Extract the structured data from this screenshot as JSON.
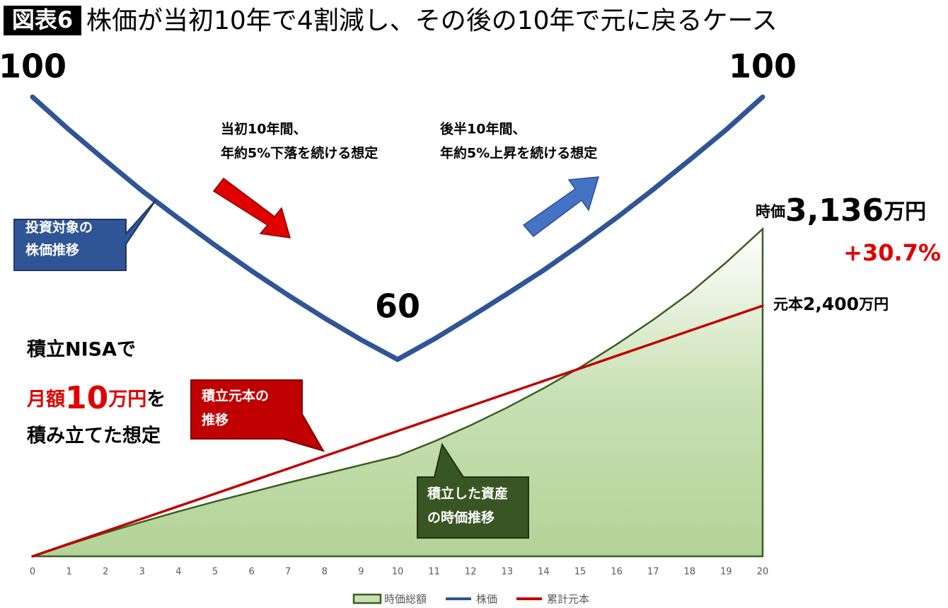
{
  "chart_data": {
    "type": "line",
    "title_tag": "図表6",
    "title": "株価が当初10年で4割減し、その後の10年で元に戻るケース",
    "x": [
      0,
      1,
      2,
      3,
      4,
      5,
      6,
      7,
      8,
      9,
      10,
      11,
      12,
      13,
      14,
      15,
      16,
      17,
      18,
      19,
      20
    ],
    "xlim": [
      0,
      20
    ],
    "xticks": [
      0,
      1,
      2,
      3,
      4,
      5,
      6,
      7,
      8,
      9,
      10,
      11,
      12,
      13,
      14,
      15,
      16,
      17,
      18,
      19,
      20
    ],
    "ylim": [
      0,
      4400
    ],
    "y2lim": [
      30,
      100
    ],
    "series": [
      {
        "name": "時価総額",
        "color": "#3a5f1e",
        "area": true,
        "values": [
          0,
          115,
          225,
          330,
          430,
          525,
          615,
          705,
          790,
          875,
          960,
          1100,
          1255,
          1425,
          1610,
          1810,
          2030,
          2265,
          2520,
          2815,
          3136
        ],
        "value_labels": [
          null,
          null,
          null,
          null,
          null,
          null,
          null,
          null,
          null,
          null,
          null,
          null,
          null,
          null,
          null,
          null,
          null,
          null,
          null,
          null,
          "3,136"
        ]
      },
      {
        "name": "株価",
        "color": "#2f5597",
        "axis": "y2",
        "values": [
          100,
          95,
          90.3,
          85.7,
          81.5,
          77.4,
          73.5,
          69.8,
          66.3,
          63,
          60,
          63.1,
          66.5,
          70,
          73.6,
          77.5,
          81.6,
          85.9,
          90.4,
          95,
          100
        ]
      },
      {
        "name": "累計元本",
        "color": "#c00000",
        "values": [
          0,
          120,
          240,
          360,
          480,
          600,
          720,
          840,
          960,
          1080,
          1200,
          1320,
          1440,
          1560,
          1680,
          1800,
          1920,
          2040,
          2160,
          2280,
          2400
        ],
        "value_labels": [
          null,
          null,
          null,
          null,
          null,
          null,
          null,
          null,
          null,
          null,
          null,
          null,
          null,
          null,
          null,
          null,
          null,
          null,
          null,
          null,
          "2,400"
        ]
      }
    ],
    "end_value_prefix": "時価",
    "end_value_unit": "万円",
    "end_return": "+30.7%",
    "principal_prefix": "元本",
    "principal_unit": "万円",
    "note_decline": [
      "当初10年間、",
      "年約5%下落を続ける想定"
    ],
    "note_rise": [
      "後半10年間、",
      "年約5%上昇を続ける想定"
    ],
    "callout_price": [
      "投資対象の",
      "株価推移"
    ],
    "callout_principal": [
      "積立元本の",
      "推移"
    ],
    "callout_value": [
      "積立した資産",
      "の時価推移"
    ],
    "plan": {
      "line1": "積立NISAで",
      "monthly": "月額",
      "amount": "10",
      "unit": "万円",
      "particle": "を",
      "line3": "積み立てた想定"
    }
  }
}
